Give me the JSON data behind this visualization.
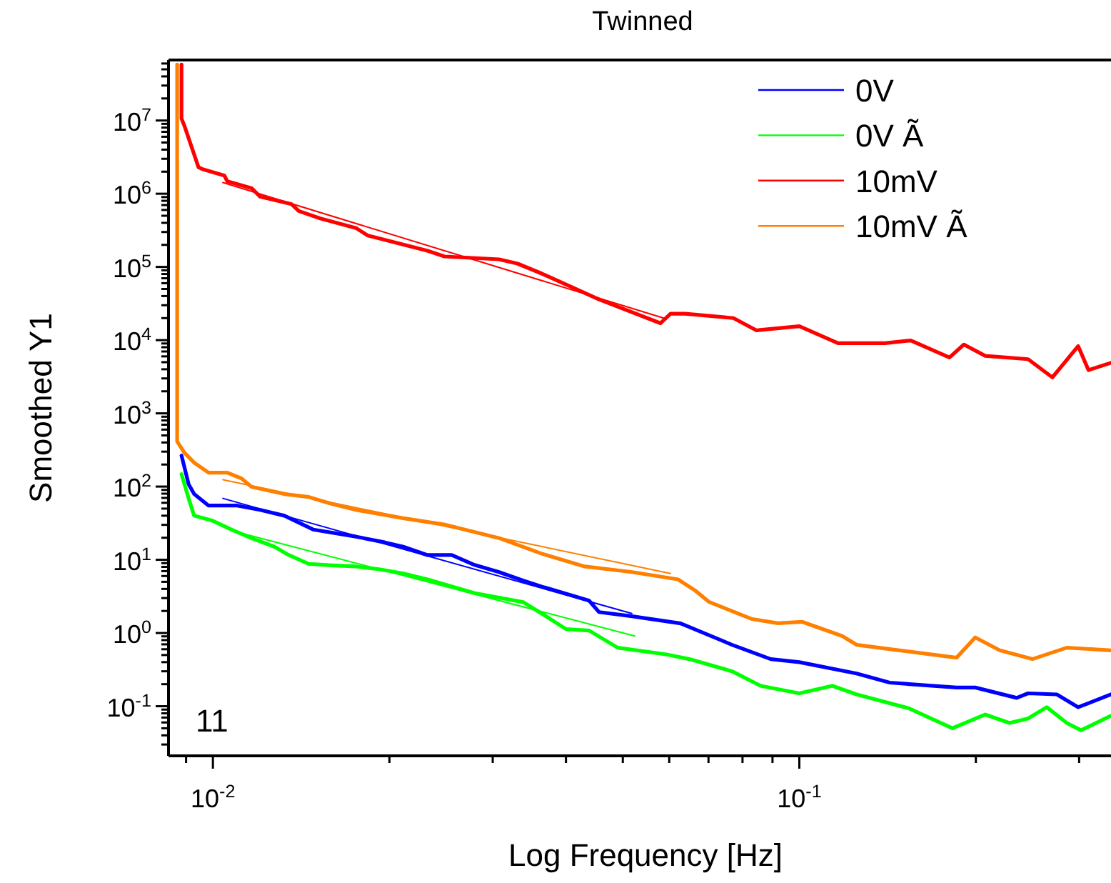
{
  "chart_data": {
    "type": "line",
    "title": "Twinned",
    "xlabel": "Log Frequency [Hz]",
    "ylabel": "Smoothed Y1",
    "log": "xy",
    "legend": "top right",
    "grid": false,
    "annotations": [
      "11"
    ],
    "xlim": [
      0.0084,
      0.34
    ],
    "ylim": [
      0.021,
      67000000
    ],
    "xticks": [
      {
        "value": 0.009,
        "label": null
      },
      {
        "value": 0.01,
        "label": "10$^{-2}$"
      },
      {
        "value": 0.02,
        "label": null
      },
      {
        "value": 0.03,
        "label": null
      },
      {
        "value": 0.04,
        "label": null
      },
      {
        "value": 0.05,
        "label": null
      },
      {
        "value": 0.06,
        "label": null
      },
      {
        "value": 0.07,
        "label": null
      },
      {
        "value": 0.08,
        "label": null
      },
      {
        "value": 0.09,
        "label": null
      },
      {
        "value": 0.1,
        "label": "10$^{-1}$"
      },
      {
        "value": 0.2,
        "label": null
      },
      {
        "value": 0.3,
        "label": null
      }
    ],
    "yticks": [
      {
        "value": 0.03,
        "label": null
      },
      {
        "value": 0.04,
        "label": null
      },
      {
        "value": 0.05,
        "label": null
      },
      {
        "value": 0.06,
        "label": null
      },
      {
        "value": 0.07,
        "label": null
      },
      {
        "value": 0.08,
        "label": null
      },
      {
        "value": 0.09,
        "label": null
      },
      {
        "value": 0.1,
        "label": "10$^{-1}$"
      },
      {
        "value": 0.2,
        "label": null
      },
      {
        "value": 0.3,
        "label": null
      },
      {
        "value": 0.4,
        "label": null
      },
      {
        "value": 0.5,
        "label": null
      },
      {
        "value": 0.6,
        "label": null
      },
      {
        "value": 0.7,
        "label": null
      },
      {
        "value": 0.8,
        "label": null
      },
      {
        "value": 0.9,
        "label": null
      },
      {
        "value": 1,
        "label": "10$^{0}$"
      },
      {
        "value": 2,
        "label": null
      },
      {
        "value": 3,
        "label": null
      },
      {
        "value": 4,
        "label": null
      },
      {
        "value": 5,
        "label": null
      },
      {
        "value": 6,
        "label": null
      },
      {
        "value": 7,
        "label": null
      },
      {
        "value": 8,
        "label": null
      },
      {
        "value": 9,
        "label": null
      },
      {
        "value": 10,
        "label": "10$^{1}$"
      },
      {
        "value": 20,
        "label": null
      },
      {
        "value": 30,
        "label": null
      },
      {
        "value": 40,
        "label": null
      },
      {
        "value": 50,
        "label": null
      },
      {
        "value": 60,
        "label": null
      },
      {
        "value": 70,
        "label": null
      },
      {
        "value": 80,
        "label": null
      },
      {
        "value": 90,
        "label": null
      },
      {
        "value": 100,
        "label": "10$^{2}$"
      },
      {
        "value": 200,
        "label": null
      },
      {
        "value": 300,
        "label": null
      },
      {
        "value": 400,
        "label": null
      },
      {
        "value": 500,
        "label": null
      },
      {
        "value": 600,
        "label": null
      },
      {
        "value": 700,
        "label": null
      },
      {
        "value": 800,
        "label": null
      },
      {
        "value": 900,
        "label": null
      },
      {
        "value": 1000,
        "label": "10$^{3}$"
      },
      {
        "value": 2000,
        "label": null
      },
      {
        "value": 3000,
        "label": null
      },
      {
        "value": 4000,
        "label": null
      },
      {
        "value": 5000,
        "label": null
      },
      {
        "value": 6000,
        "label": null
      },
      {
        "value": 7000,
        "label": null
      },
      {
        "value": 8000,
        "label": null
      },
      {
        "value": 9000,
        "label": null
      },
      {
        "value": 10000,
        "label": "10$^{4}$"
      },
      {
        "value": 20000,
        "label": null
      },
      {
        "value": 30000,
        "label": null
      },
      {
        "value": 40000,
        "label": null
      },
      {
        "value": 50000,
        "label": null
      },
      {
        "value": 60000,
        "label": null
      },
      {
        "value": 70000,
        "label": null
      },
      {
        "value": 80000,
        "label": null
      },
      {
        "value": 90000,
        "label": null
      },
      {
        "value": 100000,
        "label": "10$^{5}$"
      },
      {
        "value": 200000,
        "label": null
      },
      {
        "value": 300000,
        "label": null
      },
      {
        "value": 400000,
        "label": null
      },
      {
        "value": 500000,
        "label": null
      },
      {
        "value": 600000,
        "label": null
      },
      {
        "value": 700000,
        "label": null
      },
      {
        "value": 800000,
        "label": null
      },
      {
        "value": 900000,
        "label": null
      },
      {
        "value": 1000000,
        "label": "10$^{6}$"
      },
      {
        "value": 2000000,
        "label": null
      },
      {
        "value": 3000000,
        "label": null
      },
      {
        "value": 4000000,
        "label": null
      },
      {
        "value": 5000000,
        "label": null
      },
      {
        "value": 6000000,
        "label": null
      },
      {
        "value": 7000000,
        "label": null
      },
      {
        "value": 8000000,
        "label": null
      },
      {
        "value": 9000000,
        "label": null
      },
      {
        "value": 10000000,
        "label": "10$^{7}$"
      },
      {
        "value": 20000000,
        "label": null
      },
      {
        "value": 30000000,
        "label": null
      },
      {
        "value": 40000000,
        "label": null
      },
      {
        "value": 50000000,
        "label": null
      },
      {
        "value": 60000000,
        "label": null
      }
    ],
    "series": [
      {
        "name": "0V",
        "color": "#0000ff",
        "x": [
          0.00884,
          0.00909,
          0.00929,
          0.00983,
          0.011,
          0.01204,
          0.01324,
          0.01482,
          0.01754,
          0.01963,
          0.02111,
          0.02322,
          0.02554,
          0.02794,
          0.03075,
          0.03383,
          0.03639,
          0.04074,
          0.0438,
          0.04554,
          0.05184,
          0.06274,
          0.07679,
          0.0894,
          0.1,
          0.1252,
          0.1426,
          0.1854,
          0.1995,
          0.2348,
          0.2455,
          0.2748,
          0.2989,
          0.34
        ],
        "values": [
          265,
          108,
          79,
          55,
          55,
          48,
          40,
          25.9,
          20.7,
          17.3,
          15.1,
          11.6,
          11.6,
          8.5,
          6.8,
          5.2,
          4.3,
          3.3,
          2.77,
          1.93,
          1.69,
          1.35,
          0.69,
          0.44,
          0.4,
          0.28,
          0.21,
          0.18,
          0.18,
          0.13,
          0.15,
          0.145,
          0.097,
          0.145
        ]
      },
      {
        "name": "0V Ã",
        "color": "#00ff00",
        "x": [
          0.00884,
          0.00909,
          0.00929,
          0.01,
          0.01076,
          0.01164,
          0.01273,
          0.01347,
          0.01457,
          0.01593,
          0.01754,
          0.01929,
          0.02111,
          0.02322,
          0.02794,
          0.03383,
          0.037,
          0.04002,
          0.0438,
          0.049,
          0.05932,
          0.06492,
          0.07679,
          0.0859,
          0.1,
          0.1138,
          0.1252,
          0.1541,
          0.1824,
          0.2075,
          0.2283,
          0.2455,
          0.2642,
          0.2858,
          0.3022,
          0.34
        ],
        "values": [
          148,
          69,
          40,
          34,
          25.8,
          19.7,
          15.1,
          11.6,
          8.8,
          8.4,
          8.1,
          7.4,
          6.5,
          5.4,
          3.5,
          2.64,
          1.69,
          1.13,
          1.08,
          0.63,
          0.51,
          0.44,
          0.3,
          0.19,
          0.15,
          0.19,
          0.145,
          0.093,
          0.05,
          0.077,
          0.059,
          0.068,
          0.097,
          0.059,
          0.047,
          0.074
        ]
      },
      {
        "name": "10mV",
        "color": "#ff0000",
        "x": [
          0.00884,
          0.00884,
          0.00894,
          0.00945,
          0.00962,
          0.01046,
          0.01058,
          0.01164,
          0.01204,
          0.01362,
          0.01401,
          0.01524,
          0.01754,
          0.01834,
          0.02322,
          0.02483,
          0.03075,
          0.03307,
          0.03639,
          0.04554,
          0.05799,
          0.06031,
          0.06383,
          0.0772,
          0.08453,
          0.1,
          0.1164,
          0.14,
          0.1549,
          0.1803,
          0.1908,
          0.2075,
          0.2455,
          0.2701,
          0.2989,
          0.3112,
          0.34
        ],
        "values": [
          58000000,
          10600000,
          8500000,
          2300000,
          2150000,
          1770000,
          1480000,
          1190000,
          910000,
          720000,
          580000,
          460000,
          340000,
          270000,
          166000,
          139000,
          127000,
          111000,
          81000,
          36000,
          17000,
          23000,
          23000,
          20000,
          13600,
          15500,
          9100,
          9100,
          9900,
          5800,
          8700,
          6100,
          5500,
          3100,
          8300,
          3900,
          4900
        ]
      },
      {
        "name": "10mV Ã",
        "color": "#ff8000",
        "x": [
          0.00869,
          0.00869,
          0.00894,
          0.00929,
          0.00983,
          0.01058,
          0.01119,
          0.01164,
          0.01324,
          0.01457,
          0.01593,
          0.01754,
          0.02111,
          0.02497,
          0.03075,
          0.03639,
          0.04305,
          0.05184,
          0.06209,
          0.06644,
          0.07019,
          0.08307,
          0.09191,
          0.1012,
          0.1183,
          0.1252,
          0.1482,
          0.1854,
          0.1995,
          0.2196,
          0.2497,
          0.2858,
          0.34
        ],
        "values": [
          58000000,
          414,
          290,
          212,
          155,
          155,
          129,
          99,
          79,
          72,
          58,
          48,
          37,
          30,
          19.8,
          12.1,
          8.1,
          6.8,
          5.4,
          3.8,
          2.65,
          1.55,
          1.36,
          1.42,
          0.91,
          0.69,
          0.58,
          0.46,
          0.87,
          0.58,
          0.44,
          0.63,
          0.58
        ]
      },
      {
        "color": "#ff0000",
        "x": [
          0.0104,
          0.0587
        ],
        "values": [
          1420000,
          20000
        ]
      },
      {
        "color": "#ff8000",
        "x": [
          0.0104,
          0.0603
        ],
        "values": [
          124,
          6.5
        ]
      },
      {
        "color": "#0000ff",
        "x": [
          0.0104,
          0.0518
        ],
        "values": [
          69,
          1.85
        ]
      },
      {
        "color": "#00ff00",
        "x": [
          0.01076,
          0.0524
        ],
        "values": [
          25,
          0.91
        ]
      }
    ]
  }
}
